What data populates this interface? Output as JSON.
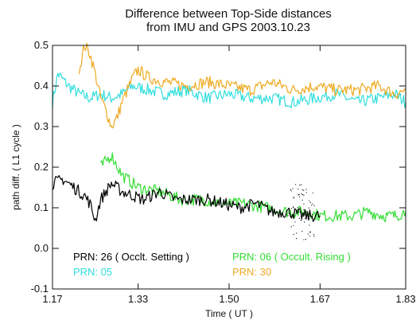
{
  "chart_data": {
    "type": "line",
    "title": "Difference between Top-Side distances",
    "subtitle": "from IMU and GPS   2003.10.23",
    "xlabel": "Time ( UT )",
    "ylabel": "path diff. ( L1 cycle )",
    "xlim": [
      1.17,
      1.83
    ],
    "ylim": [
      -0.1,
      0.5
    ],
    "xticks": [
      "1.17",
      "1.33",
      "1.50",
      "1.67",
      "1.83"
    ],
    "yticks": [
      "-0.1",
      "0.0",
      "0.1",
      "0.2",
      "0.3",
      "0.4",
      "0.5"
    ],
    "grid": false,
    "legend_position": "lower-left inside",
    "series": [
      {
        "name": "PRN: 26 ( Occlt. Setting )",
        "color": "#000000",
        "x": [
          1.17,
          1.19,
          1.21,
          1.23,
          1.24,
          1.25,
          1.26,
          1.27,
          1.28,
          1.3,
          1.32,
          1.34,
          1.37,
          1.4,
          1.43,
          1.46,
          1.49,
          1.52,
          1.55,
          1.58,
          1.61,
          1.64,
          1.67
        ],
        "y": [
          0.16,
          0.17,
          0.15,
          0.13,
          0.11,
          0.07,
          0.12,
          0.14,
          0.16,
          0.14,
          0.13,
          0.12,
          0.14,
          0.12,
          0.12,
          0.12,
          0.11,
          0.1,
          0.11,
          0.09,
          0.09,
          0.08,
          0.08
        ]
      },
      {
        "name": "PRN: 06 ( Occult. Rising )",
        "color": "#33dd33",
        "x": [
          1.26,
          1.28,
          1.3,
          1.33,
          1.37,
          1.41,
          1.45,
          1.49,
          1.53,
          1.57,
          1.61,
          1.65,
          1.67,
          1.7,
          1.73,
          1.76,
          1.79,
          1.81,
          1.83
        ],
        "y": [
          0.2,
          0.23,
          0.18,
          0.15,
          0.14,
          0.12,
          0.12,
          0.11,
          0.11,
          0.1,
          0.09,
          0.09,
          0.08,
          0.08,
          0.08,
          0.09,
          0.08,
          0.08,
          0.09
        ]
      },
      {
        "name": "PRN: 05",
        "color": "#33dddd",
        "x": [
          1.17,
          1.18,
          1.2,
          1.22,
          1.24,
          1.26,
          1.28,
          1.3,
          1.32,
          1.35,
          1.38,
          1.42,
          1.46,
          1.5,
          1.54,
          1.58,
          1.62,
          1.66,
          1.7,
          1.74,
          1.78,
          1.81,
          1.83
        ],
        "y": [
          0.36,
          0.43,
          0.4,
          0.38,
          0.37,
          0.38,
          0.37,
          0.38,
          0.4,
          0.39,
          0.38,
          0.39,
          0.37,
          0.38,
          0.37,
          0.37,
          0.36,
          0.37,
          0.38,
          0.36,
          0.37,
          0.38,
          0.36
        ]
      },
      {
        "name": "PRN: 30",
        "color": "#eeaa22",
        "x": [
          1.22,
          1.23,
          1.24,
          1.25,
          1.26,
          1.27,
          1.28,
          1.29,
          1.3,
          1.31,
          1.32,
          1.33,
          1.35,
          1.38,
          1.42,
          1.46,
          1.5,
          1.54,
          1.58,
          1.62,
          1.66,
          1.7,
          1.74,
          1.78,
          1.81,
          1.83
        ],
        "y": [
          0.44,
          0.5,
          0.48,
          0.43,
          0.37,
          0.34,
          0.3,
          0.32,
          0.36,
          0.39,
          0.42,
          0.44,
          0.42,
          0.41,
          0.4,
          0.41,
          0.4,
          0.39,
          0.41,
          0.39,
          0.4,
          0.39,
          0.39,
          0.4,
          0.38,
          0.39
        ]
      }
    ]
  }
}
